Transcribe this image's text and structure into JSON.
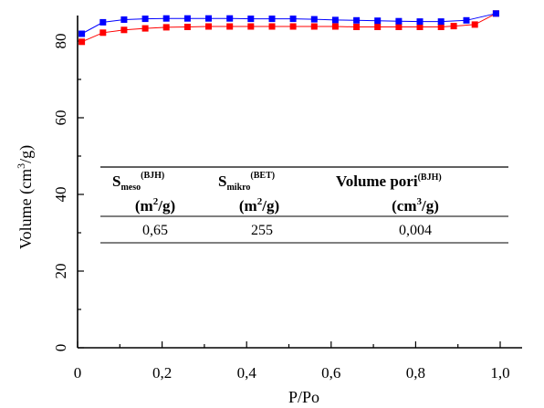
{
  "chart_data": {
    "type": "scatter",
    "xlabel": "P/Po",
    "ylabel": "Volume (cm³/g)",
    "ylabel_parts": {
      "pre": "Volume (cm",
      "sup": "3",
      "post": "/g)"
    },
    "xlim": [
      0,
      1.0
    ],
    "ylim": [
      0,
      90
    ],
    "xticks": [
      0,
      0.2,
      0.4,
      0.6,
      0.8,
      1.0
    ],
    "xtick_labels": [
      "0",
      "0,2",
      "0,4",
      "0,6",
      "0,8",
      "1,0"
    ],
    "yticks": [
      0,
      20,
      40,
      60,
      80
    ],
    "ytick_labels": [
      "0",
      "20",
      "40",
      "60",
      "80"
    ],
    "grid": false,
    "series": [
      {
        "color": "#ff0000",
        "marker": "square",
        "x": [
          0.01,
          0.06,
          0.11,
          0.16,
          0.21,
          0.26,
          0.31,
          0.36,
          0.41,
          0.46,
          0.51,
          0.56,
          0.61,
          0.66,
          0.71,
          0.76,
          0.81,
          0.86,
          0.89,
          0.94,
          0.99
        ],
        "y": [
          79.8,
          82.2,
          82.9,
          83.3,
          83.6,
          83.7,
          83.8,
          83.8,
          83.8,
          83.8,
          83.8,
          83.8,
          83.8,
          83.7,
          83.7,
          83.7,
          83.7,
          83.7,
          83.9,
          84.3,
          87.2
        ]
      },
      {
        "color": "#0000ff",
        "marker": "square",
        "x": [
          0.01,
          0.06,
          0.11,
          0.16,
          0.21,
          0.26,
          0.31,
          0.36,
          0.41,
          0.46,
          0.51,
          0.56,
          0.61,
          0.66,
          0.71,
          0.76,
          0.81,
          0.86,
          0.92,
          0.99
        ],
        "y": [
          81.9,
          84.9,
          85.6,
          85.8,
          85.9,
          85.9,
          85.9,
          85.9,
          85.8,
          85.8,
          85.8,
          85.7,
          85.5,
          85.4,
          85.3,
          85.2,
          85.1,
          85.1,
          85.4,
          87.2
        ]
      }
    ]
  },
  "inset_table": {
    "headers": [
      {
        "main": "S",
        "sub": "meso",
        "sup": "(BJH)"
      },
      {
        "main": "S",
        "sub": "mikro",
        "sup": "(BET)"
      },
      {
        "main": "Volume pori",
        "sub": "",
        "sup": "(BJH)"
      }
    ],
    "units": [
      {
        "pre": "(m",
        "sup": "2",
        "post": "/g)"
      },
      {
        "pre": "(m",
        "sup": "2",
        "post": "/g)"
      },
      {
        "pre": "(cm",
        "sup": "3",
        "post": "/g)"
      }
    ],
    "values": [
      "0,65",
      "255",
      "0,004"
    ]
  }
}
